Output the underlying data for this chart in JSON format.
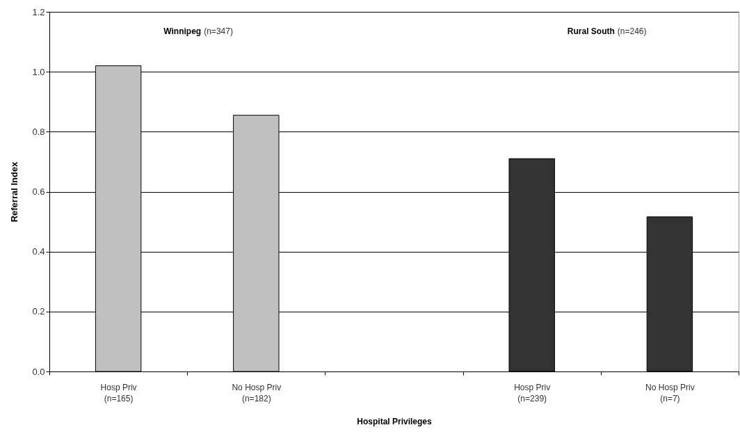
{
  "chart_data": {
    "type": "bar",
    "xlabel": "Hospital Privileges",
    "ylabel": "Referral Index",
    "categories": [
      "Hosp Priv\n(n=165)",
      "No Hosp Priv\n(n=182)",
      null,
      "Hosp Priv\n(n=239)",
      "No Hosp Priv\n(n=7)"
    ],
    "series": [
      {
        "color": "#c0c0c0",
        "values": [
          1.02,
          0.855,
          null,
          null,
          null
        ]
      },
      {
        "color": "#333333",
        "values": [
          null,
          null,
          null,
          0.71,
          0.516
        ]
      }
    ],
    "annotations": [
      "Winnipeg (n=347)",
      "Rural South (n=246)"
    ],
    "ylim": [
      0,
      1.2
    ],
    "yticks": [
      {
        "value": 0,
        "label": "0.0"
      },
      {
        "value": 0.2,
        "label": "0.2"
      },
      {
        "value": 0.4,
        "label": "0.4"
      },
      {
        "value": 0.6,
        "label": "0.6"
      },
      {
        "value": 0.8,
        "label": "0.8"
      },
      {
        "value": 1.0,
        "label": "1.0"
      },
      {
        "value": 1.2,
        "label": "1.2"
      }
    ],
    "grid": "y"
  }
}
